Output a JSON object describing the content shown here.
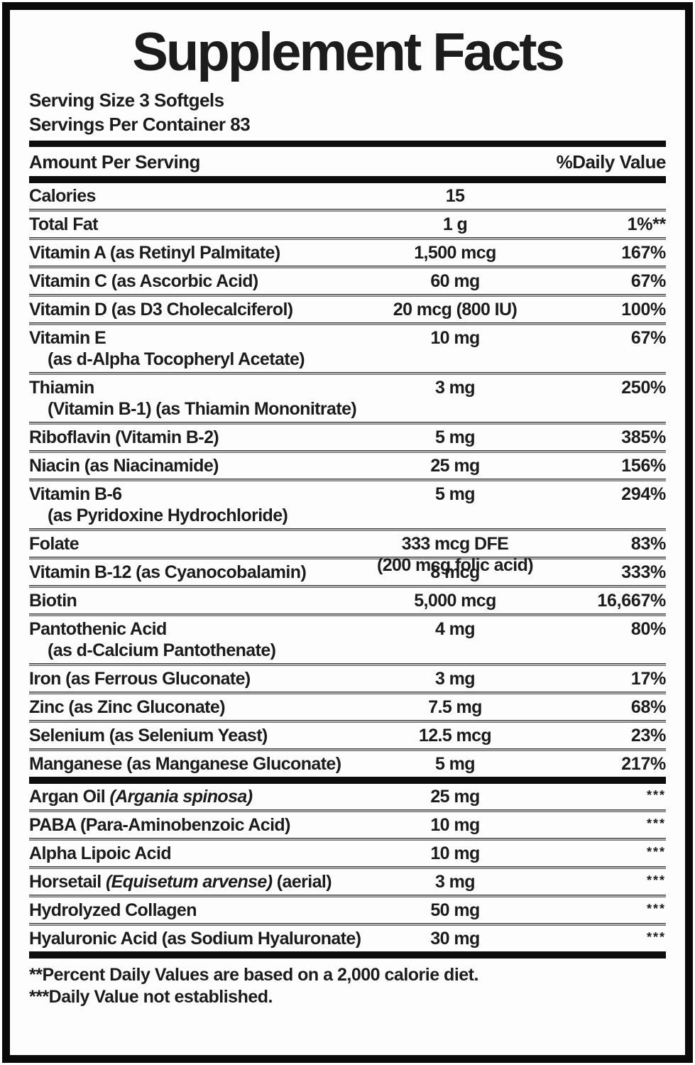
{
  "label": {
    "title": "Supplement Facts",
    "serving_size": "Serving Size 3 Softgels",
    "servings_per_container": "Servings Per Container 83",
    "columns": {
      "amount_header": "Amount Per Serving",
      "dv_header": "%Daily Value"
    },
    "rows": [
      {
        "name": "Calories",
        "amount": "15",
        "dv": ""
      },
      {
        "name": "Total Fat",
        "amount": "1 g",
        "dv": "1%**"
      },
      {
        "name": "Vitamin A (as Retinyl Palmitate)",
        "amount": "1,500 mcg",
        "dv": "167%"
      },
      {
        "name": "Vitamin C (as Ascorbic Acid)",
        "amount": "60 mg",
        "dv": "67%"
      },
      {
        "name": "Vitamin D (as D3 Cholecalciferol)",
        "amount": "20 mcg (800 IU)",
        "dv": "100%"
      },
      {
        "name": "Vitamin E",
        "name_line2": "(as d-Alpha Tocopheryl Acetate)",
        "amount": "10 mg",
        "dv": "67%"
      },
      {
        "name": "Thiamin",
        "name_line2": "(Vitamin B-1) (as Thiamin Mononitrate)",
        "amount": "3 mg",
        "dv": "250%"
      },
      {
        "name": "Riboflavin (Vitamin B-2)",
        "amount": "5 mg",
        "dv": "385%"
      },
      {
        "name": "Niacin (as Niacinamide)",
        "amount": "25 mg",
        "dv": "156%"
      },
      {
        "name": "Vitamin B-6",
        "name_line2": "(as Pyridoxine Hydrochloride)",
        "amount": "5 mg",
        "dv": "294%"
      },
      {
        "name": "Folate",
        "amount": "333 mcg DFE",
        "amount_line2": "(200 mcg folic acid)",
        "dv": "83%"
      },
      {
        "name": "Vitamin B-12 (as Cyanocobalamin)",
        "amount": "8 mcg",
        "dv": "333%"
      },
      {
        "name": "Biotin",
        "amount": "5,000 mcg",
        "dv": "16,667%"
      },
      {
        "name": "Pantothenic Acid",
        "name_line2": "(as d-Calcium Pantothenate)",
        "amount": "4 mg",
        "dv": "80%"
      },
      {
        "name": "Iron (as Ferrous Gluconate)",
        "amount": "3 mg",
        "dv": "17%"
      },
      {
        "name": "Zinc (as Zinc Gluconate)",
        "amount": "7.5 mg",
        "dv": "68%"
      },
      {
        "name": "Selenium (as Selenium Yeast)",
        "amount": "12.5 mcg",
        "dv": "23%"
      },
      {
        "name": "Manganese (as Manganese Gluconate)",
        "amount": "5 mg",
        "dv": "217%",
        "section_break_after": true
      },
      {
        "name": "Argan Oil ",
        "name_italic": "(Argania spinosa)",
        "amount": "25 mg",
        "dv": "***"
      },
      {
        "name": "PABA (Para-Aminobenzoic Acid)",
        "amount": "10 mg",
        "dv": "***"
      },
      {
        "name": "Alpha Lipoic Acid",
        "amount": "10 mg",
        "dv": "***"
      },
      {
        "name": "Horsetail ",
        "name_italic": "(Equisetum arvense)",
        "name_post": " (aerial)",
        "amount": "3 mg",
        "dv": "***"
      },
      {
        "name": "Hydrolyzed Collagen",
        "amount": "50 mg",
        "dv": "***"
      },
      {
        "name": "Hyaluronic Acid (as Sodium Hyaluronate)",
        "amount": "30 mg",
        "dv": "***"
      }
    ],
    "footnotes": [
      "**Percent Daily Values are based on a 2,000 calorie diet.",
      "***Daily Value not established."
    ],
    "colors": {
      "background": "#fdfdfd",
      "text": "#1c1c1c",
      "border": "#0a0a0a",
      "row_line": "#4a4a4a"
    }
  }
}
